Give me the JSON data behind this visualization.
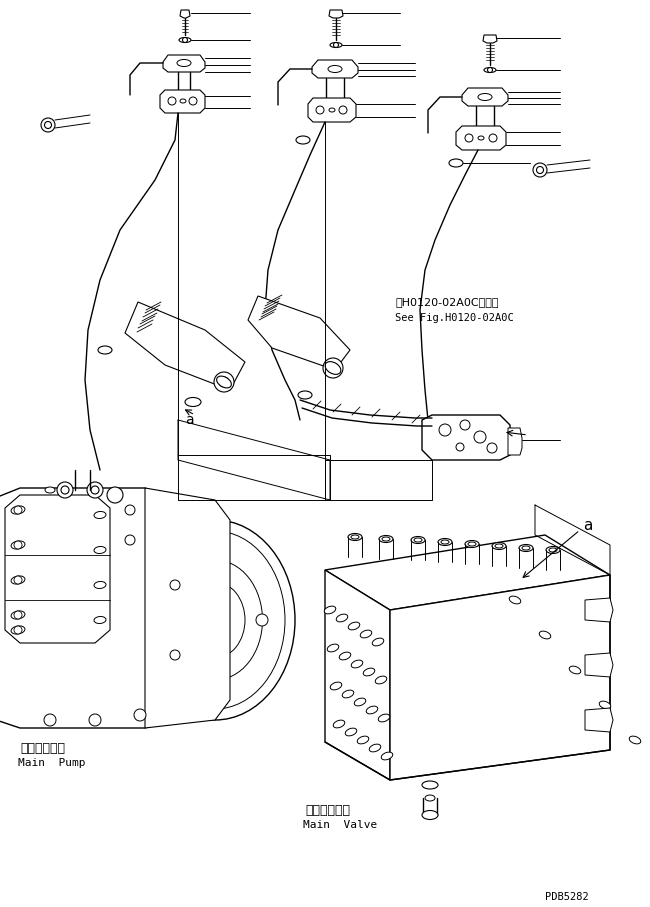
{
  "bg_color": "#ffffff",
  "line_color": "#000000",
  "lw": 0.7,
  "fig_width": 6.5,
  "fig_height": 9.07,
  "dpi": 100,
  "part_id": "PDB5282",
  "ref_line1": "第H0120-02A0C図参照",
  "ref_line2": "See Fig.H0120-02A0C",
  "label_a": "a",
  "pump_jp": "メインポンプ",
  "pump_en": "Main  Pump",
  "valve_jp": "メインバルブ",
  "valve_en": "Main  Valve"
}
